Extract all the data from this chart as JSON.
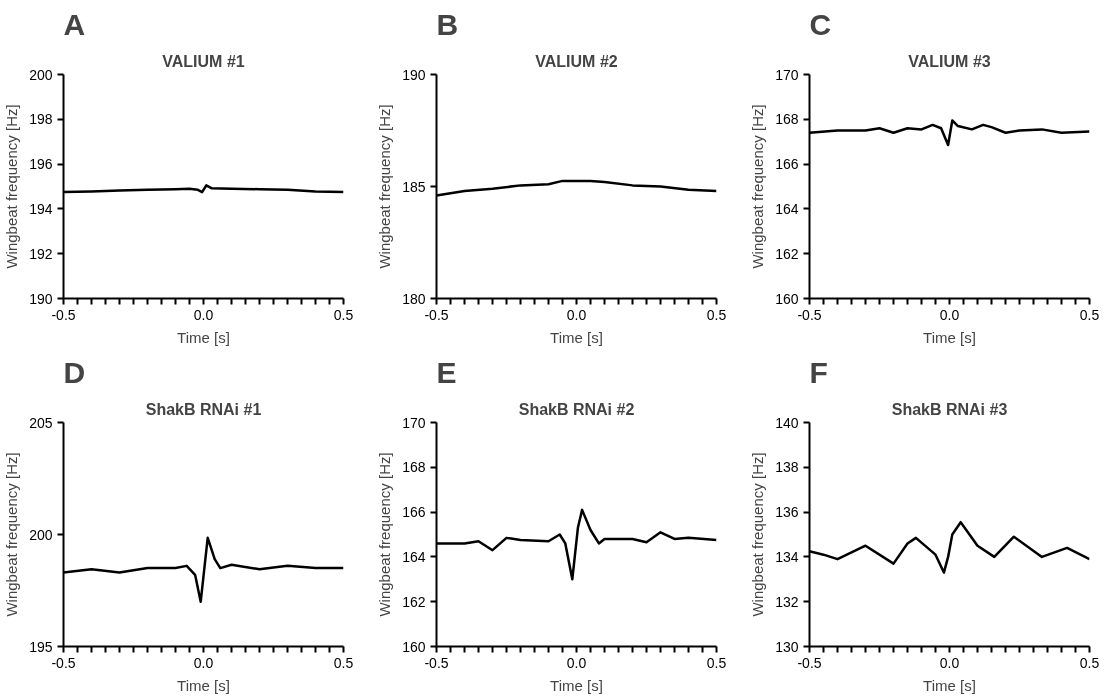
{
  "chart_data": [
    {
      "type": "line",
      "title": "VALIUM #1",
      "annotations": [
        "A"
      ],
      "xlabel": "Time [s]",
      "ylabel": "Wingbeat frequency [Hz]",
      "color": "#000000",
      "x": [
        -0.5,
        -0.4,
        -0.3,
        -0.2,
        -0.1,
        -0.05,
        -0.02,
        -0.005,
        0.01,
        0.03,
        0.1,
        0.2,
        0.3,
        0.4,
        0.5
      ],
      "values": [
        194.75,
        194.78,
        194.82,
        194.85,
        194.88,
        194.9,
        194.85,
        194.75,
        195.05,
        194.92,
        194.9,
        194.88,
        194.85,
        194.78,
        194.75
      ],
      "xlim": [
        -0.5,
        0.5
      ],
      "ylim": [
        190,
        200
      ],
      "xticks": [
        {
          "value": -0.5,
          "label": "-0.5"
        },
        {
          "value": -0.45,
          "label": null
        },
        {
          "value": -0.4,
          "label": null
        },
        {
          "value": -0.35,
          "label": null
        },
        {
          "value": -0.3,
          "label": null
        },
        {
          "value": -0.25,
          "label": null
        },
        {
          "value": -0.2,
          "label": null
        },
        {
          "value": -0.15,
          "label": null
        },
        {
          "value": -0.1,
          "label": null
        },
        {
          "value": -0.05,
          "label": null
        },
        {
          "value": 0,
          "label": "0.0"
        },
        {
          "value": 0.05,
          "label": null
        },
        {
          "value": 0.1,
          "label": null
        },
        {
          "value": 0.15,
          "label": null
        },
        {
          "value": 0.2,
          "label": null
        },
        {
          "value": 0.25,
          "label": null
        },
        {
          "value": 0.3,
          "label": null
        },
        {
          "value": 0.35,
          "label": null
        },
        {
          "value": 0.4,
          "label": null
        },
        {
          "value": 0.45,
          "label": null
        },
        {
          "value": 0.5,
          "label": "0.5"
        }
      ],
      "yticks": [
        190,
        192,
        194,
        196,
        198,
        200
      ]
    },
    {
      "type": "line",
      "title": "VALIUM #2",
      "annotations": [
        "B"
      ],
      "xlabel": "Time [s]",
      "ylabel": "Wingbeat frequency [Hz]",
      "color": "#000000",
      "x": [
        -0.5,
        -0.4,
        -0.3,
        -0.2,
        -0.1,
        -0.05,
        0,
        0.05,
        0.1,
        0.2,
        0.3,
        0.4,
        0.5
      ],
      "values": [
        184.6,
        184.8,
        184.9,
        185.05,
        185.1,
        185.25,
        185.25,
        185.25,
        185.2,
        185.05,
        185.0,
        184.85,
        184.8
      ],
      "xlim": [
        -0.5,
        0.5
      ],
      "ylim": [
        180,
        190
      ],
      "xticks": [
        {
          "value": -0.5,
          "label": "-0.5"
        },
        {
          "value": -0.45,
          "label": null
        },
        {
          "value": -0.4,
          "label": null
        },
        {
          "value": -0.35,
          "label": null
        },
        {
          "value": -0.3,
          "label": null
        },
        {
          "value": -0.25,
          "label": null
        },
        {
          "value": -0.2,
          "label": null
        },
        {
          "value": -0.15,
          "label": null
        },
        {
          "value": -0.1,
          "label": null
        },
        {
          "value": -0.05,
          "label": null
        },
        {
          "value": 0,
          "label": "0.0"
        },
        {
          "value": 0.05,
          "label": null
        },
        {
          "value": 0.1,
          "label": null
        },
        {
          "value": 0.15,
          "label": null
        },
        {
          "value": 0.2,
          "label": null
        },
        {
          "value": 0.25,
          "label": null
        },
        {
          "value": 0.3,
          "label": null
        },
        {
          "value": 0.35,
          "label": null
        },
        {
          "value": 0.4,
          "label": null
        },
        {
          "value": 0.45,
          "label": null
        },
        {
          "value": 0.5,
          "label": "0.5"
        }
      ],
      "yticks": [
        180,
        185,
        190
      ]
    },
    {
      "type": "line",
      "title": "VALIUM #3",
      "annotations": [
        "C"
      ],
      "xlabel": "Time [s]",
      "ylabel": "Wingbeat frequency [Hz]",
      "color": "#000000",
      "x": [
        -0.5,
        -0.4,
        -0.3,
        -0.25,
        -0.2,
        -0.15,
        -0.1,
        -0.06,
        -0.03,
        -0.005,
        0.01,
        0.03,
        0.08,
        0.12,
        0.15,
        0.2,
        0.25,
        0.33,
        0.4,
        0.5
      ],
      "values": [
        167.4,
        167.5,
        167.5,
        167.6,
        167.4,
        167.6,
        167.55,
        167.75,
        167.6,
        166.85,
        167.95,
        167.7,
        167.55,
        167.75,
        167.65,
        167.4,
        167.5,
        167.55,
        167.4,
        167.45
      ],
      "xlim": [
        -0.5,
        0.5
      ],
      "ylim": [
        160,
        170
      ],
      "xticks": [
        {
          "value": -0.5,
          "label": "-0.5"
        },
        {
          "value": -0.45,
          "label": null
        },
        {
          "value": -0.4,
          "label": null
        },
        {
          "value": -0.35,
          "label": null
        },
        {
          "value": -0.3,
          "label": null
        },
        {
          "value": -0.25,
          "label": null
        },
        {
          "value": -0.2,
          "label": null
        },
        {
          "value": -0.15,
          "label": null
        },
        {
          "value": -0.1,
          "label": null
        },
        {
          "value": -0.05,
          "label": null
        },
        {
          "value": 0,
          "label": "0.0"
        },
        {
          "value": 0.05,
          "label": null
        },
        {
          "value": 0.1,
          "label": null
        },
        {
          "value": 0.15,
          "label": null
        },
        {
          "value": 0.2,
          "label": null
        },
        {
          "value": 0.25,
          "label": null
        },
        {
          "value": 0.3,
          "label": null
        },
        {
          "value": 0.35,
          "label": null
        },
        {
          "value": 0.4,
          "label": null
        },
        {
          "value": 0.45,
          "label": null
        },
        {
          "value": 0.5,
          "label": "0.5"
        }
      ],
      "yticks": [
        160,
        162,
        164,
        166,
        168,
        170
      ]
    },
    {
      "type": "line",
      "title": "ShakB RNAi #1",
      "annotations": [
        "D"
      ],
      "xlabel": "Time [s]",
      "ylabel": "Wingbeat frequency [Hz]",
      "color": "#000000",
      "x": [
        -0.5,
        -0.4,
        -0.3,
        -0.2,
        -0.1,
        -0.06,
        -0.03,
        -0.01,
        0.015,
        0.04,
        0.06,
        0.1,
        0.2,
        0.3,
        0.4,
        0.5
      ],
      "values": [
        198.3,
        198.45,
        198.3,
        198.5,
        198.5,
        198.6,
        198.2,
        197.0,
        199.85,
        198.9,
        198.5,
        198.65,
        198.45,
        198.6,
        198.5,
        198.5
      ],
      "xlim": [
        -0.5,
        0.5
      ],
      "ylim": [
        195,
        205
      ],
      "xticks": [
        {
          "value": -0.5,
          "label": "-0.5"
        },
        {
          "value": -0.45,
          "label": null
        },
        {
          "value": -0.4,
          "label": null
        },
        {
          "value": -0.35,
          "label": null
        },
        {
          "value": -0.3,
          "label": null
        },
        {
          "value": -0.25,
          "label": null
        },
        {
          "value": -0.2,
          "label": null
        },
        {
          "value": -0.15,
          "label": null
        },
        {
          "value": -0.1,
          "label": null
        },
        {
          "value": -0.05,
          "label": null
        },
        {
          "value": 0,
          "label": "0.0"
        },
        {
          "value": 0.05,
          "label": null
        },
        {
          "value": 0.1,
          "label": null
        },
        {
          "value": 0.15,
          "label": null
        },
        {
          "value": 0.2,
          "label": null
        },
        {
          "value": 0.25,
          "label": null
        },
        {
          "value": 0.3,
          "label": null
        },
        {
          "value": 0.35,
          "label": null
        },
        {
          "value": 0.4,
          "label": null
        },
        {
          "value": 0.45,
          "label": null
        },
        {
          "value": 0.5,
          "label": "0.5"
        }
      ],
      "yticks": [
        195,
        200,
        205
      ]
    },
    {
      "type": "line",
      "title": "ShakB RNAi #2",
      "annotations": [
        "E"
      ],
      "xlabel": "Time [s]",
      "ylabel": "Wingbeat frequency [Hz]",
      "color": "#000000",
      "x": [
        -0.5,
        -0.4,
        -0.35,
        -0.3,
        -0.25,
        -0.2,
        -0.1,
        -0.06,
        -0.04,
        -0.015,
        0.005,
        0.02,
        0.05,
        0.08,
        0.1,
        0.2,
        0.25,
        0.3,
        0.35,
        0.4,
        0.5
      ],
      "values": [
        164.6,
        164.6,
        164.7,
        164.3,
        164.85,
        164.75,
        164.7,
        165.0,
        164.6,
        163.0,
        165.3,
        166.1,
        165.2,
        164.6,
        164.8,
        164.8,
        164.65,
        165.1,
        164.8,
        164.85,
        164.75
      ],
      "xlim": [
        -0.5,
        0.5
      ],
      "ylim": [
        160,
        170
      ],
      "xticks": [
        {
          "value": -0.5,
          "label": "-0.5"
        },
        {
          "value": -0.45,
          "label": null
        },
        {
          "value": -0.4,
          "label": null
        },
        {
          "value": -0.35,
          "label": null
        },
        {
          "value": -0.3,
          "label": null
        },
        {
          "value": -0.25,
          "label": null
        },
        {
          "value": -0.2,
          "label": null
        },
        {
          "value": -0.15,
          "label": null
        },
        {
          "value": -0.1,
          "label": null
        },
        {
          "value": -0.05,
          "label": null
        },
        {
          "value": 0,
          "label": "0.0"
        },
        {
          "value": 0.05,
          "label": null
        },
        {
          "value": 0.1,
          "label": null
        },
        {
          "value": 0.15,
          "label": null
        },
        {
          "value": 0.2,
          "label": null
        },
        {
          "value": 0.25,
          "label": null
        },
        {
          "value": 0.3,
          "label": null
        },
        {
          "value": 0.35,
          "label": null
        },
        {
          "value": 0.4,
          "label": null
        },
        {
          "value": 0.45,
          "label": null
        },
        {
          "value": 0.5,
          "label": "0.5"
        }
      ],
      "yticks": [
        160,
        162,
        164,
        166,
        168,
        170
      ]
    },
    {
      "type": "line",
      "title": "ShakB RNAi #3",
      "annotations": [
        "F"
      ],
      "xlabel": "Time [s]",
      "ylabel": "Wingbeat frequency [Hz]",
      "color": "#000000",
      "x": [
        -0.5,
        -0.45,
        -0.4,
        -0.3,
        -0.2,
        -0.15,
        -0.12,
        -0.05,
        -0.02,
        -0.005,
        0.01,
        0.04,
        0.1,
        0.16,
        0.23,
        0.33,
        0.42,
        0.5
      ],
      "values": [
        134.25,
        134.1,
        133.9,
        134.5,
        133.7,
        134.6,
        134.85,
        134.1,
        133.3,
        134.0,
        135.0,
        135.55,
        134.5,
        134.0,
        134.9,
        134.0,
        134.4,
        133.9
      ],
      "xlim": [
        -0.5,
        0.5
      ],
      "ylim": [
        130,
        140
      ],
      "xticks": [
        {
          "value": -0.5,
          "label": "-0.5"
        },
        {
          "value": -0.45,
          "label": null
        },
        {
          "value": -0.4,
          "label": null
        },
        {
          "value": -0.35,
          "label": null
        },
        {
          "value": -0.3,
          "label": null
        },
        {
          "value": -0.25,
          "label": null
        },
        {
          "value": -0.2,
          "label": null
        },
        {
          "value": -0.15,
          "label": null
        },
        {
          "value": -0.1,
          "label": null
        },
        {
          "value": -0.05,
          "label": null
        },
        {
          "value": 0,
          "label": "0.0"
        },
        {
          "value": 0.05,
          "label": null
        },
        {
          "value": 0.1,
          "label": null
        },
        {
          "value": 0.15,
          "label": null
        },
        {
          "value": 0.2,
          "label": null
        },
        {
          "value": 0.25,
          "label": null
        },
        {
          "value": 0.3,
          "label": null
        },
        {
          "value": 0.35,
          "label": null
        },
        {
          "value": 0.4,
          "label": null
        },
        {
          "value": 0.45,
          "label": null
        },
        {
          "value": 0.5,
          "label": "0.5"
        }
      ],
      "yticks": [
        130,
        132,
        134,
        136,
        138,
        140
      ]
    }
  ]
}
